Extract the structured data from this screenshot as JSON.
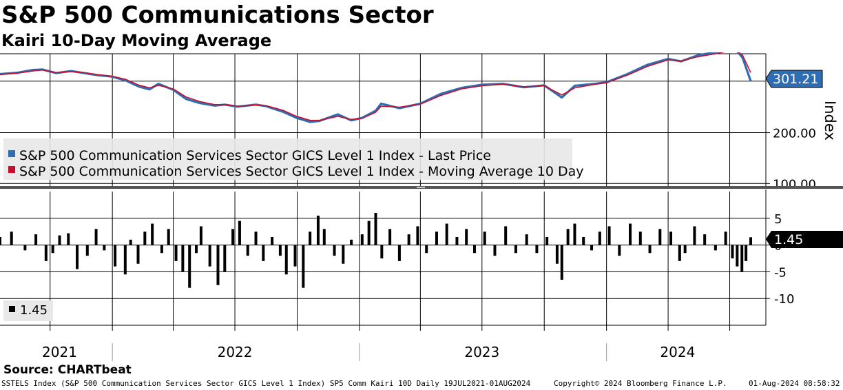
{
  "header": {
    "title": "S&P 500 Communications Sector",
    "subtitle": "Kairi 10-Day Moving Average"
  },
  "source": "Source: CHARTbeat",
  "footer": {
    "left": "SSTELS Index (S&P 500 Communication Services Sector GICS Level 1 Index) SP5 Comm Kairi 10D  Daily 19JUL2021-01AUG2024",
    "middle": "Copyright© 2024 Bloomberg Finance L.P.",
    "right": "01-Aug-2024 08:58:32"
  },
  "colors": {
    "price": "#2f6db3",
    "moving_average": "#c8102e",
    "bars": "#000000",
    "grid": "#000000",
    "price_label_bg": "#2f6db3",
    "kairi_label_bg": "#000000"
  },
  "chart_data": [
    {
      "type": "line",
      "panel": "upper",
      "y_axis_label": "Index",
      "y_ticks": [
        "100.00",
        "200.00"
      ],
      "ylim": [
        95,
        355
      ],
      "last_value_label": "301.21",
      "x_range": [
        "2021-07-19",
        "2024-08-01"
      ],
      "x_year_labels": [
        "2021",
        "2022",
        "2023",
        "2024"
      ],
      "series": [
        {
          "name": "S&P 500 Communication Services Sector GICS Level 1 Index - Last Price",
          "x": [
            "2021-07-19",
            "2021-08-15",
            "2021-09-05",
            "2021-09-20",
            "2021-10-10",
            "2021-11-01",
            "2021-11-20",
            "2021-12-10",
            "2021-12-31",
            "2022-01-20",
            "2022-02-10",
            "2022-02-25",
            "2022-03-10",
            "2022-04-01",
            "2022-04-20",
            "2022-05-10",
            "2022-06-01",
            "2022-06-16",
            "2022-07-05",
            "2022-08-01",
            "2022-08-16",
            "2022-09-10",
            "2022-09-30",
            "2022-10-20",
            "2022-11-03",
            "2022-11-30",
            "2022-12-20",
            "2023-01-05",
            "2023-01-25",
            "2023-02-02",
            "2023-03-01",
            "2023-04-01",
            "2023-05-01",
            "2023-06-01",
            "2023-07-01",
            "2023-08-01",
            "2023-09-01",
            "2023-10-01",
            "2023-10-27",
            "2023-11-15",
            "2023-12-15",
            "2024-01-01",
            "2024-02-01",
            "2024-03-01",
            "2024-04-01",
            "2024-04-20",
            "2024-05-15",
            "2024-06-10",
            "2024-06-28",
            "2024-07-10",
            "2024-07-20",
            "2024-08-01"
          ],
          "values": [
            315,
            318,
            323,
            324,
            317,
            321,
            317,
            313,
            310,
            303,
            290,
            285,
            296,
            284,
            266,
            258,
            253,
            255,
            251,
            255,
            252,
            241,
            229,
            221,
            223,
            236,
            224,
            229,
            243,
            257,
            248,
            257,
            276,
            288,
            294,
            296,
            289,
            293,
            269,
            292,
            296,
            299,
            315,
            333,
            345,
            340,
            352,
            358,
            364,
            363,
            347,
            301.21
          ]
        },
        {
          "name": "S&P 500 Communication Services Sector GICS Level 1 Index - Moving Average 10 Day",
          "x": [
            "2021-07-19",
            "2021-08-15",
            "2021-09-05",
            "2021-09-20",
            "2021-10-10",
            "2021-11-01",
            "2021-11-20",
            "2021-12-10",
            "2021-12-31",
            "2022-01-20",
            "2022-02-10",
            "2022-02-25",
            "2022-03-10",
            "2022-04-01",
            "2022-04-20",
            "2022-05-10",
            "2022-06-01",
            "2022-06-16",
            "2022-07-05",
            "2022-08-01",
            "2022-08-16",
            "2022-09-10",
            "2022-09-30",
            "2022-10-20",
            "2022-11-03",
            "2022-11-30",
            "2022-12-20",
            "2023-01-05",
            "2023-01-25",
            "2023-02-02",
            "2023-03-01",
            "2023-04-01",
            "2023-05-01",
            "2023-06-01",
            "2023-07-01",
            "2023-08-01",
            "2023-09-01",
            "2023-10-01",
            "2023-10-27",
            "2023-11-15",
            "2023-12-15",
            "2024-01-01",
            "2024-02-01",
            "2024-03-01",
            "2024-04-01",
            "2024-04-20",
            "2024-05-15",
            "2024-06-10",
            "2024-06-28",
            "2024-07-10",
            "2024-07-20",
            "2024-08-01"
          ],
          "values": [
            314,
            317,
            321,
            323,
            318,
            320,
            318,
            314,
            311,
            305,
            293,
            288,
            293,
            286,
            270,
            261,
            255,
            255,
            252,
            254,
            253,
            244,
            232,
            224,
            224,
            232,
            226,
            228,
            240,
            252,
            250,
            256,
            273,
            286,
            292,
            295,
            290,
            292,
            274,
            288,
            295,
            298,
            313,
            330,
            343,
            341,
            349,
            355,
            360,
            362,
            352,
            318
          ]
        }
      ]
    },
    {
      "type": "bar",
      "panel": "lower",
      "y_ticks": [
        "5",
        "0",
        "-5",
        "-10"
      ],
      "ylim": [
        -15,
        10
      ],
      "last_value_label": "1.45",
      "legend_label": "1.45",
      "series": [
        {
          "name": "Kairi 10-Day",
          "x": [
            "2021-07-19",
            "2021-08-05",
            "2021-08-25",
            "2021-09-10",
            "2021-09-25",
            "2021-10-05",
            "2021-10-15",
            "2021-10-28",
            "2021-11-10",
            "2021-11-25",
            "2021-12-08",
            "2021-12-20",
            "2022-01-05",
            "2022-01-20",
            "2022-01-28",
            "2022-02-08",
            "2022-02-18",
            "2022-03-01",
            "2022-03-15",
            "2022-03-25",
            "2022-04-05",
            "2022-04-15",
            "2022-04-25",
            "2022-05-05",
            "2022-05-12",
            "2022-05-25",
            "2022-06-06",
            "2022-06-16",
            "2022-06-28",
            "2022-07-08",
            "2022-07-20",
            "2022-08-01",
            "2022-08-12",
            "2022-08-25",
            "2022-09-06",
            "2022-09-15",
            "2022-09-28",
            "2022-10-10",
            "2022-10-20",
            "2022-11-01",
            "2022-11-10",
            "2022-11-25",
            "2022-12-08",
            "2022-12-20",
            "2023-01-05",
            "2023-01-15",
            "2023-01-25",
            "2023-02-03",
            "2023-02-15",
            "2023-03-01",
            "2023-03-15",
            "2023-03-28",
            "2023-04-10",
            "2023-04-25",
            "2023-05-10",
            "2023-05-25",
            "2023-06-08",
            "2023-06-20",
            "2023-07-05",
            "2023-07-20",
            "2023-08-05",
            "2023-08-20",
            "2023-09-05",
            "2023-09-20",
            "2023-10-05",
            "2023-10-20",
            "2023-10-27",
            "2023-11-05",
            "2023-11-15",
            "2023-11-28",
            "2023-12-10",
            "2023-12-22",
            "2024-01-05",
            "2024-01-20",
            "2024-02-05",
            "2024-02-20",
            "2024-03-05",
            "2024-03-20",
            "2024-04-05",
            "2024-04-18",
            "2024-04-26",
            "2024-05-10",
            "2024-05-25",
            "2024-06-10",
            "2024-06-25",
            "2024-07-05",
            "2024-07-12",
            "2024-07-19",
            "2024-07-25",
            "2024-08-01"
          ],
          "values": [
            1.5,
            2.5,
            -1.0,
            2.0,
            -3.0,
            -1.5,
            1.8,
            2.2,
            -4.5,
            -2.0,
            3.0,
            -1.0,
            -4.0,
            -5.5,
            1.0,
            -3.5,
            2.5,
            4.0,
            -1.5,
            3.0,
            -3.0,
            -5.0,
            -8.0,
            -1.5,
            3.5,
            -4.0,
            -7.5,
            -5.0,
            3.0,
            4.5,
            -2.0,
            2.5,
            -3.0,
            1.5,
            -2.0,
            -5.5,
            -4.0,
            -8.0,
            2.5,
            5.5,
            3.0,
            -2.0,
            -3.5,
            1.0,
            2.0,
            4.5,
            6.0,
            -2.5,
            3.0,
            -3.0,
            2.0,
            3.5,
            -1.5,
            2.5,
            4.0,
            1.5,
            3.0,
            -1.5,
            2.5,
            -2.0,
            3.5,
            -1.5,
            2.0,
            -1.5,
            1.5,
            -3.5,
            -6.5,
            3.0,
            4.0,
            1.5,
            -1.0,
            2.5,
            3.5,
            -2.0,
            4.0,
            2.5,
            -1.5,
            3.0,
            2.5,
            -3.0,
            -1.5,
            3.5,
            2.0,
            -1.0,
            2.5,
            -2.5,
            -4.0,
            -5.0,
            -3.0,
            1.45
          ]
        }
      ]
    }
  ]
}
